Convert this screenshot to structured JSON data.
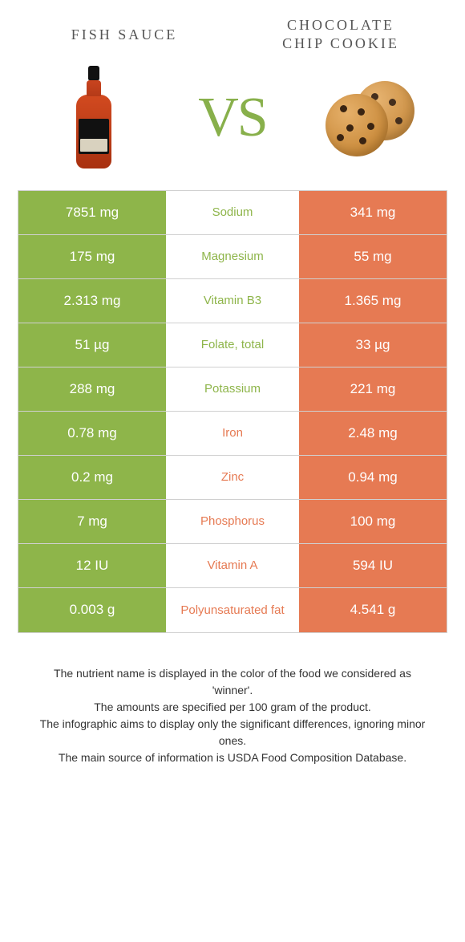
{
  "colors": {
    "left": "#8eb54a",
    "right": "#e67a53",
    "text_on": "#ffffff"
  },
  "header": {
    "left": "FISH SAUCE",
    "right_line1": "CHOCOLATE",
    "right_line2": "CHIP COOKIE",
    "vs": "VS"
  },
  "rows": [
    {
      "left": "7851 mg",
      "label": "Sodium",
      "right": "341 mg",
      "winner": "left"
    },
    {
      "left": "175 mg",
      "label": "Magnesium",
      "right": "55 mg",
      "winner": "left"
    },
    {
      "left": "2.313 mg",
      "label": "Vitamin B3",
      "right": "1.365 mg",
      "winner": "left"
    },
    {
      "left": "51 µg",
      "label": "Folate, total",
      "right": "33 µg",
      "winner": "left"
    },
    {
      "left": "288 mg",
      "label": "Potassium",
      "right": "221 mg",
      "winner": "left"
    },
    {
      "left": "0.78 mg",
      "label": "Iron",
      "right": "2.48 mg",
      "winner": "right"
    },
    {
      "left": "0.2 mg",
      "label": "Zinc",
      "right": "0.94 mg",
      "winner": "right"
    },
    {
      "left": "7 mg",
      "label": "Phosphorus",
      "right": "100 mg",
      "winner": "right"
    },
    {
      "left": "12 IU",
      "label": "Vitamin A",
      "right": "594 IU",
      "winner": "right"
    },
    {
      "left": "0.003 g",
      "label": "Polyunsaturated fat",
      "right": "4.541 g",
      "winner": "right"
    }
  ],
  "footer": [
    "The nutrient name is displayed in the color of the food we considered as 'winner'.",
    "The amounts are specified per 100 gram of the product.",
    "The infographic aims to display only the significant differences, ignoring minor ones.",
    "The main source of information is USDA Food Composition Database."
  ]
}
